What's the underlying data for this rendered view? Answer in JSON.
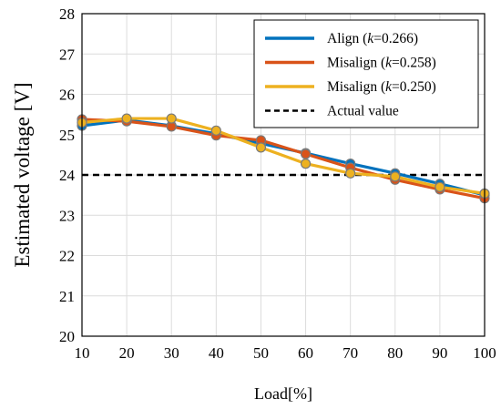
{
  "chart_data": {
    "type": "line",
    "title": "",
    "xlabel": "Load[%]",
    "ylabel": "Estimated voltage [V]",
    "x": [
      10,
      20,
      30,
      40,
      50,
      60,
      70,
      80,
      90,
      100
    ],
    "xlim": [
      10,
      100
    ],
    "ylim": [
      20,
      28
    ],
    "xticks": [
      "10",
      "20",
      "30",
      "40",
      "50",
      "60",
      "70",
      "80",
      "90",
      "100"
    ],
    "yticks": [
      "20",
      "21",
      "22",
      "23",
      "24",
      "25",
      "26",
      "27",
      "28"
    ],
    "grid": true,
    "legend_position": "top-right",
    "series": [
      {
        "name_prefix": "Align (",
        "name_k": "k",
        "name_suffix": "=0.266)",
        "color": "#0072BD",
        "values": [
          25.22,
          25.36,
          25.22,
          25.02,
          24.78,
          24.54,
          24.28,
          24.04,
          23.78,
          23.5
        ]
      },
      {
        "name_prefix": "Misalign (",
        "name_k": "k",
        "name_suffix": "=0.258)",
        "color": "#D95319",
        "values": [
          25.38,
          25.33,
          25.2,
          24.98,
          24.86,
          24.52,
          24.18,
          23.88,
          23.64,
          23.42
        ]
      },
      {
        "name_prefix": "Misalign (",
        "name_k": "k",
        "name_suffix": "=0.250)",
        "color": "#EDB120",
        "values": [
          25.3,
          25.4,
          25.4,
          25.1,
          24.68,
          24.28,
          24.04,
          23.96,
          23.7,
          23.54
        ]
      }
    ],
    "reference": {
      "name": "Actual value",
      "value": 24,
      "color": "#000000",
      "style": "dashed"
    }
  }
}
